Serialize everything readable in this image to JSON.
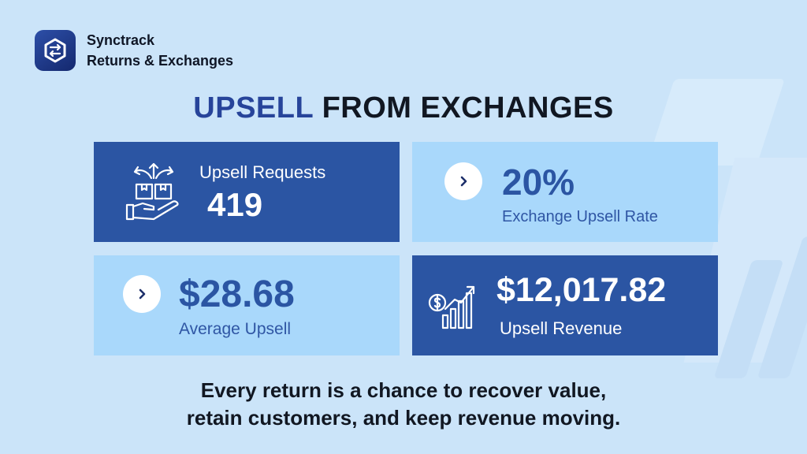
{
  "brand": {
    "name": "Synctrack",
    "subtitle": "Returns & Exchanges"
  },
  "headline": {
    "accent": "UPSELL",
    "rest": "FROM EXCHANGES"
  },
  "stats": [
    {
      "label": "Upsell Requests",
      "value": "419",
      "icon": "hand-boxes-icon"
    },
    {
      "value": "20%",
      "label": "Exchange Upsell Rate",
      "icon": "chevron-right-icon"
    },
    {
      "value": "$28.68",
      "label": "Average Upsell",
      "icon": "chevron-right-icon"
    },
    {
      "value": "$12,017.82",
      "label": "Upsell Revenue",
      "icon": "revenue-growth-icon"
    }
  ],
  "tagline": {
    "line1": "Every return is a chance to recover value,",
    "line2": "retain customers, and keep revenue moving."
  },
  "colors": {
    "background": "#cbe4f9",
    "card_dark": "#2b55a3",
    "card_light": "#a9d8fb",
    "accent": "#27449a"
  }
}
